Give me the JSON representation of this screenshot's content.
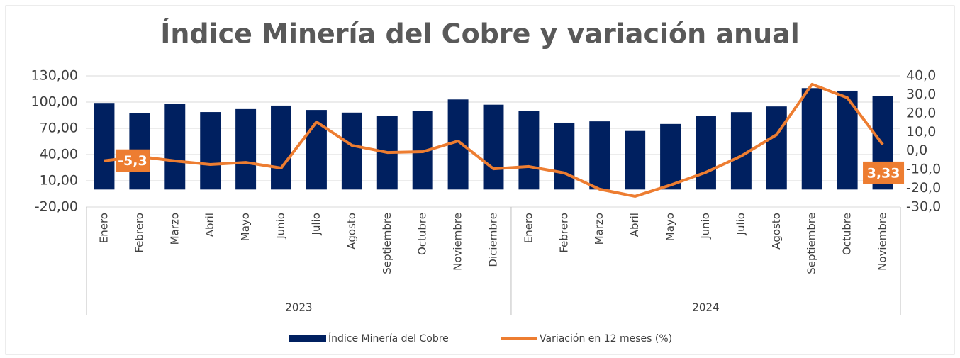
{
  "chart_data": {
    "type": "bar_line",
    "title": "Índice Minería del Cobre  y variación anual",
    "categories": [
      "Enero",
      "Febrero",
      "Marzo",
      "Abril",
      "Mayo",
      "Junio",
      "Julio",
      "Agosto",
      "Septiembre",
      "Octubre",
      "Noviembre",
      "Diciembre",
      "Enero",
      "Febrero",
      "Marzo",
      "Abril",
      "Mayo",
      "Junio",
      "Julio",
      "Agosto",
      "Septiembre",
      "Octubre",
      "Noviembre"
    ],
    "category_groups": [
      {
        "name": "2023",
        "start": 0,
        "end": 11
      },
      {
        "name": "2024",
        "start": 12,
        "end": 22
      }
    ],
    "series": [
      {
        "name": "Índice Minería del Cobre",
        "type": "bar",
        "color": "#002060",
        "values": [
          99,
          87.8,
          98,
          88.6,
          92,
          96,
          91,
          88,
          84.6,
          89.5,
          103,
          97,
          90,
          76.5,
          78,
          67,
          75,
          84.5,
          88.5,
          95,
          116,
          113,
          106.5
        ]
      },
      {
        "name": "Variación en 12 meses (%)",
        "type": "line",
        "axis": "y2",
        "color": "#ed7d31",
        "values": [
          -5.3,
          -3.1,
          -5.4,
          -7.3,
          -6.2,
          -9.2,
          15.4,
          2.9,
          -0.9,
          -0.5,
          5.2,
          -9.6,
          -8.4,
          -11.8,
          -20.5,
          -24.3,
          -18.3,
          -11.5,
          -2.8,
          8.6,
          35.5,
          28.3,
          3.33
        ],
        "value_labels": [
          "-5,3",
          null,
          null,
          null,
          null,
          null,
          null,
          null,
          null,
          null,
          null,
          null,
          null,
          null,
          null,
          null,
          null,
          null,
          null,
          null,
          null,
          null,
          "3,33"
        ]
      }
    ],
    "ylim": [
      -20,
      130
    ],
    "yticks": [
      {
        "value": -20,
        "label": "-20,00"
      },
      {
        "value": 10,
        "label": "10,00"
      },
      {
        "value": 40,
        "label": "40,00"
      },
      {
        "value": 70,
        "label": "70,00"
      },
      {
        "value": 100,
        "label": "100,00"
      },
      {
        "value": 130,
        "label": "130,00"
      }
    ],
    "y2lim": [
      -30,
      40
    ],
    "y2ticks": [
      {
        "value": -30,
        "label": "-30,0"
      },
      {
        "value": -20,
        "label": "-20,0"
      },
      {
        "value": -10,
        "label": "-10,0"
      },
      {
        "value": 0,
        "label": "0,0"
      },
      {
        "value": 10,
        "label": "10,0"
      },
      {
        "value": 20,
        "label": "20,0"
      },
      {
        "value": 30,
        "label": "30,0"
      },
      {
        "value": 40,
        "label": "40,0"
      }
    ],
    "grid": true,
    "legend": "bottom"
  }
}
